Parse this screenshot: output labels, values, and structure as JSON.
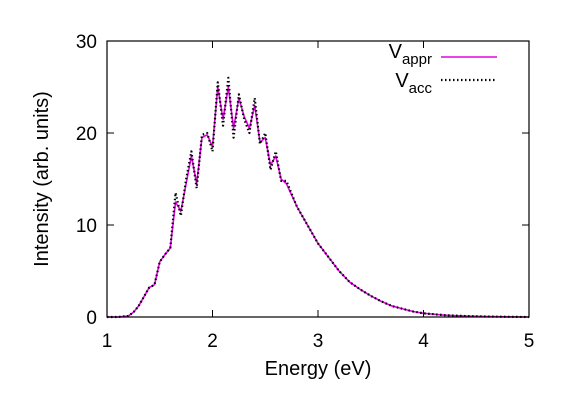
{
  "chart_data": {
    "type": "line",
    "title": "",
    "xlabel": "Energy (eV)",
    "ylabel": "Intensity (arb. units)",
    "xlim": [
      1,
      5
    ],
    "ylim": [
      0,
      30
    ],
    "xticks": [
      1,
      2,
      3,
      4,
      5
    ],
    "yticks": [
      0,
      10,
      20,
      30
    ],
    "grid": false,
    "legend_position": "top-right",
    "series": [
      {
        "name_main": "V",
        "name_sub": "appr",
        "color": "#e600e6",
        "style": "solid",
        "x": [
          1.0,
          1.1,
          1.2,
          1.25,
          1.3,
          1.35,
          1.4,
          1.45,
          1.5,
          1.55,
          1.6,
          1.65,
          1.7,
          1.75,
          1.8,
          1.85,
          1.9,
          1.95,
          2.0,
          2.05,
          2.1,
          2.15,
          2.2,
          2.25,
          2.3,
          2.35,
          2.4,
          2.45,
          2.5,
          2.55,
          2.6,
          2.65,
          2.7,
          2.8,
          2.9,
          3.0,
          3.1,
          3.2,
          3.3,
          3.4,
          3.5,
          3.6,
          3.7,
          3.8,
          3.9,
          4.0,
          4.2,
          4.4,
          4.6,
          4.8,
          5.0
        ],
        "y": [
          0.0,
          0.0,
          0.1,
          0.5,
          1.2,
          2.2,
          3.2,
          3.5,
          6.0,
          6.8,
          7.5,
          12.5,
          11.5,
          14.5,
          17.5,
          14.5,
          19.5,
          19.8,
          18.5,
          25.0,
          21.5,
          25.0,
          20.5,
          23.8,
          21.8,
          20.5,
          23.0,
          19.0,
          19.5,
          16.5,
          17.5,
          15.0,
          14.5,
          12.0,
          10.0,
          8.0,
          6.5,
          5.0,
          3.8,
          3.0,
          2.3,
          1.7,
          1.2,
          0.9,
          0.6,
          0.4,
          0.2,
          0.1,
          0.05,
          0.02,
          0.0
        ]
      },
      {
        "name_main": "V",
        "name_sub": "acc",
        "color": "#000000",
        "style": "dotted",
        "x": [
          1.0,
          1.1,
          1.2,
          1.25,
          1.3,
          1.35,
          1.4,
          1.45,
          1.5,
          1.55,
          1.6,
          1.65,
          1.7,
          1.75,
          1.8,
          1.85,
          1.9,
          1.95,
          2.0,
          2.05,
          2.1,
          2.15,
          2.2,
          2.25,
          2.3,
          2.35,
          2.4,
          2.45,
          2.5,
          2.55,
          2.6,
          2.65,
          2.7,
          2.8,
          2.9,
          3.0,
          3.1,
          3.2,
          3.3,
          3.4,
          3.5,
          3.6,
          3.7,
          3.8,
          3.9,
          4.0,
          4.2,
          4.4,
          4.6,
          4.8,
          5.0
        ],
        "y": [
          0.0,
          0.0,
          0.1,
          0.5,
          1.2,
          2.2,
          3.2,
          3.5,
          6.0,
          6.8,
          7.5,
          13.5,
          11.0,
          15.0,
          18.0,
          14.0,
          19.8,
          20.0,
          18.0,
          25.5,
          20.8,
          26.0,
          19.5,
          24.2,
          21.5,
          20.0,
          23.8,
          18.8,
          20.0,
          16.0,
          18.0,
          14.8,
          14.8,
          12.0,
          10.0,
          8.0,
          6.5,
          5.0,
          3.8,
          3.0,
          2.3,
          1.7,
          1.2,
          0.9,
          0.6,
          0.4,
          0.2,
          0.1,
          0.05,
          0.02,
          0.0
        ]
      }
    ]
  }
}
